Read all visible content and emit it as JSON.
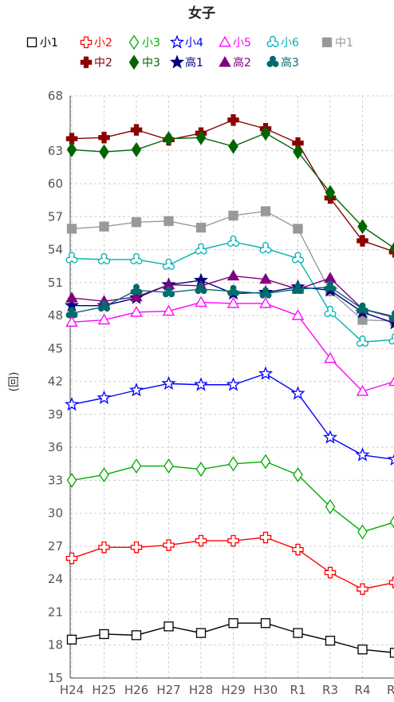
{
  "chart_data": {
    "type": "line",
    "title": "女子",
    "ylabel": "(回)",
    "xlabel": "",
    "ylim": [
      15,
      68
    ],
    "yticks": [
      15,
      18,
      21,
      24,
      27,
      30,
      33,
      36,
      39,
      42,
      45,
      48,
      51,
      54,
      57,
      60,
      63,
      68
    ],
    "grid": true,
    "legend_position": "top",
    "categories": [
      "H24",
      "H25",
      "H26",
      "H27",
      "H28",
      "H29",
      "H30",
      "R1",
      "R3",
      "R4",
      "R5"
    ],
    "series": [
      {
        "name": "小1",
        "color": "#000000",
        "marker": "square-open",
        "values": [
          18.5,
          19.0,
          18.9,
          19.7,
          19.1,
          20.0,
          20.0,
          19.1,
          18.4,
          17.6,
          17.3
        ]
      },
      {
        "name": "小2",
        "color": "#ff0000",
        "marker": "cross-open",
        "values": [
          25.9,
          26.9,
          26.9,
          27.1,
          27.5,
          27.5,
          27.8,
          26.7,
          24.6,
          23.1,
          23.7
        ]
      },
      {
        "name": "小3",
        "color": "#00aa00",
        "marker": "diamond-open",
        "values": [
          33.0,
          33.5,
          34.3,
          34.3,
          34.0,
          34.5,
          34.7,
          33.5,
          30.6,
          28.3,
          29.2
        ]
      },
      {
        "name": "小4",
        "color": "#0000ff",
        "marker": "star-open",
        "values": [
          39.9,
          40.5,
          41.2,
          41.8,
          41.7,
          41.7,
          42.7,
          40.9,
          36.9,
          35.3,
          34.9
        ]
      },
      {
        "name": "小5",
        "color": "#ff00ff",
        "marker": "triangle-open",
        "values": [
          47.4,
          47.6,
          48.3,
          48.4,
          49.2,
          49.1,
          49.1,
          48.0,
          44.1,
          41.1,
          42.0
        ]
      },
      {
        "name": "小6",
        "color": "#00b0b0",
        "marker": "tri-open",
        "values": [
          53.2,
          53.1,
          53.1,
          52.6,
          54.0,
          54.7,
          54.1,
          53.2,
          48.3,
          45.6,
          45.8
        ]
      },
      {
        "name": "中1",
        "color": "#999999",
        "marker": "square",
        "values": [
          55.9,
          56.1,
          56.5,
          56.6,
          56.0,
          57.1,
          57.5,
          55.9,
          50.2,
          47.6,
          47.5
        ]
      },
      {
        "name": "中2",
        "color": "#8b0000",
        "marker": "cross",
        "values": [
          64.1,
          64.2,
          64.9,
          64.0,
          64.6,
          65.8,
          65.0,
          63.7,
          58.7,
          54.8,
          53.8
        ]
      },
      {
        "name": "中3",
        "color": "#006400",
        "marker": "diamond",
        "values": [
          63.1,
          62.9,
          63.1,
          64.1,
          64.2,
          63.4,
          64.6,
          62.9,
          59.2,
          56.1,
          54.1
        ]
      },
      {
        "name": "高1",
        "color": "#000080",
        "marker": "star",
        "values": [
          48.9,
          48.9,
          49.6,
          50.8,
          51.2,
          50.0,
          50.1,
          50.6,
          50.3,
          48.3,
          47.3
        ]
      },
      {
        "name": "高2",
        "color": "#800080",
        "marker": "triangle",
        "values": [
          49.6,
          49.3,
          49.7,
          50.8,
          50.7,
          51.6,
          51.3,
          50.4,
          51.4,
          48.6,
          47.8
        ]
      },
      {
        "name": "高3",
        "color": "#006b6b",
        "marker": "tri",
        "values": [
          48.2,
          48.8,
          50.3,
          50.1,
          50.4,
          50.2,
          50.0,
          50.4,
          50.6,
          48.6,
          47.9
        ]
      }
    ]
  }
}
